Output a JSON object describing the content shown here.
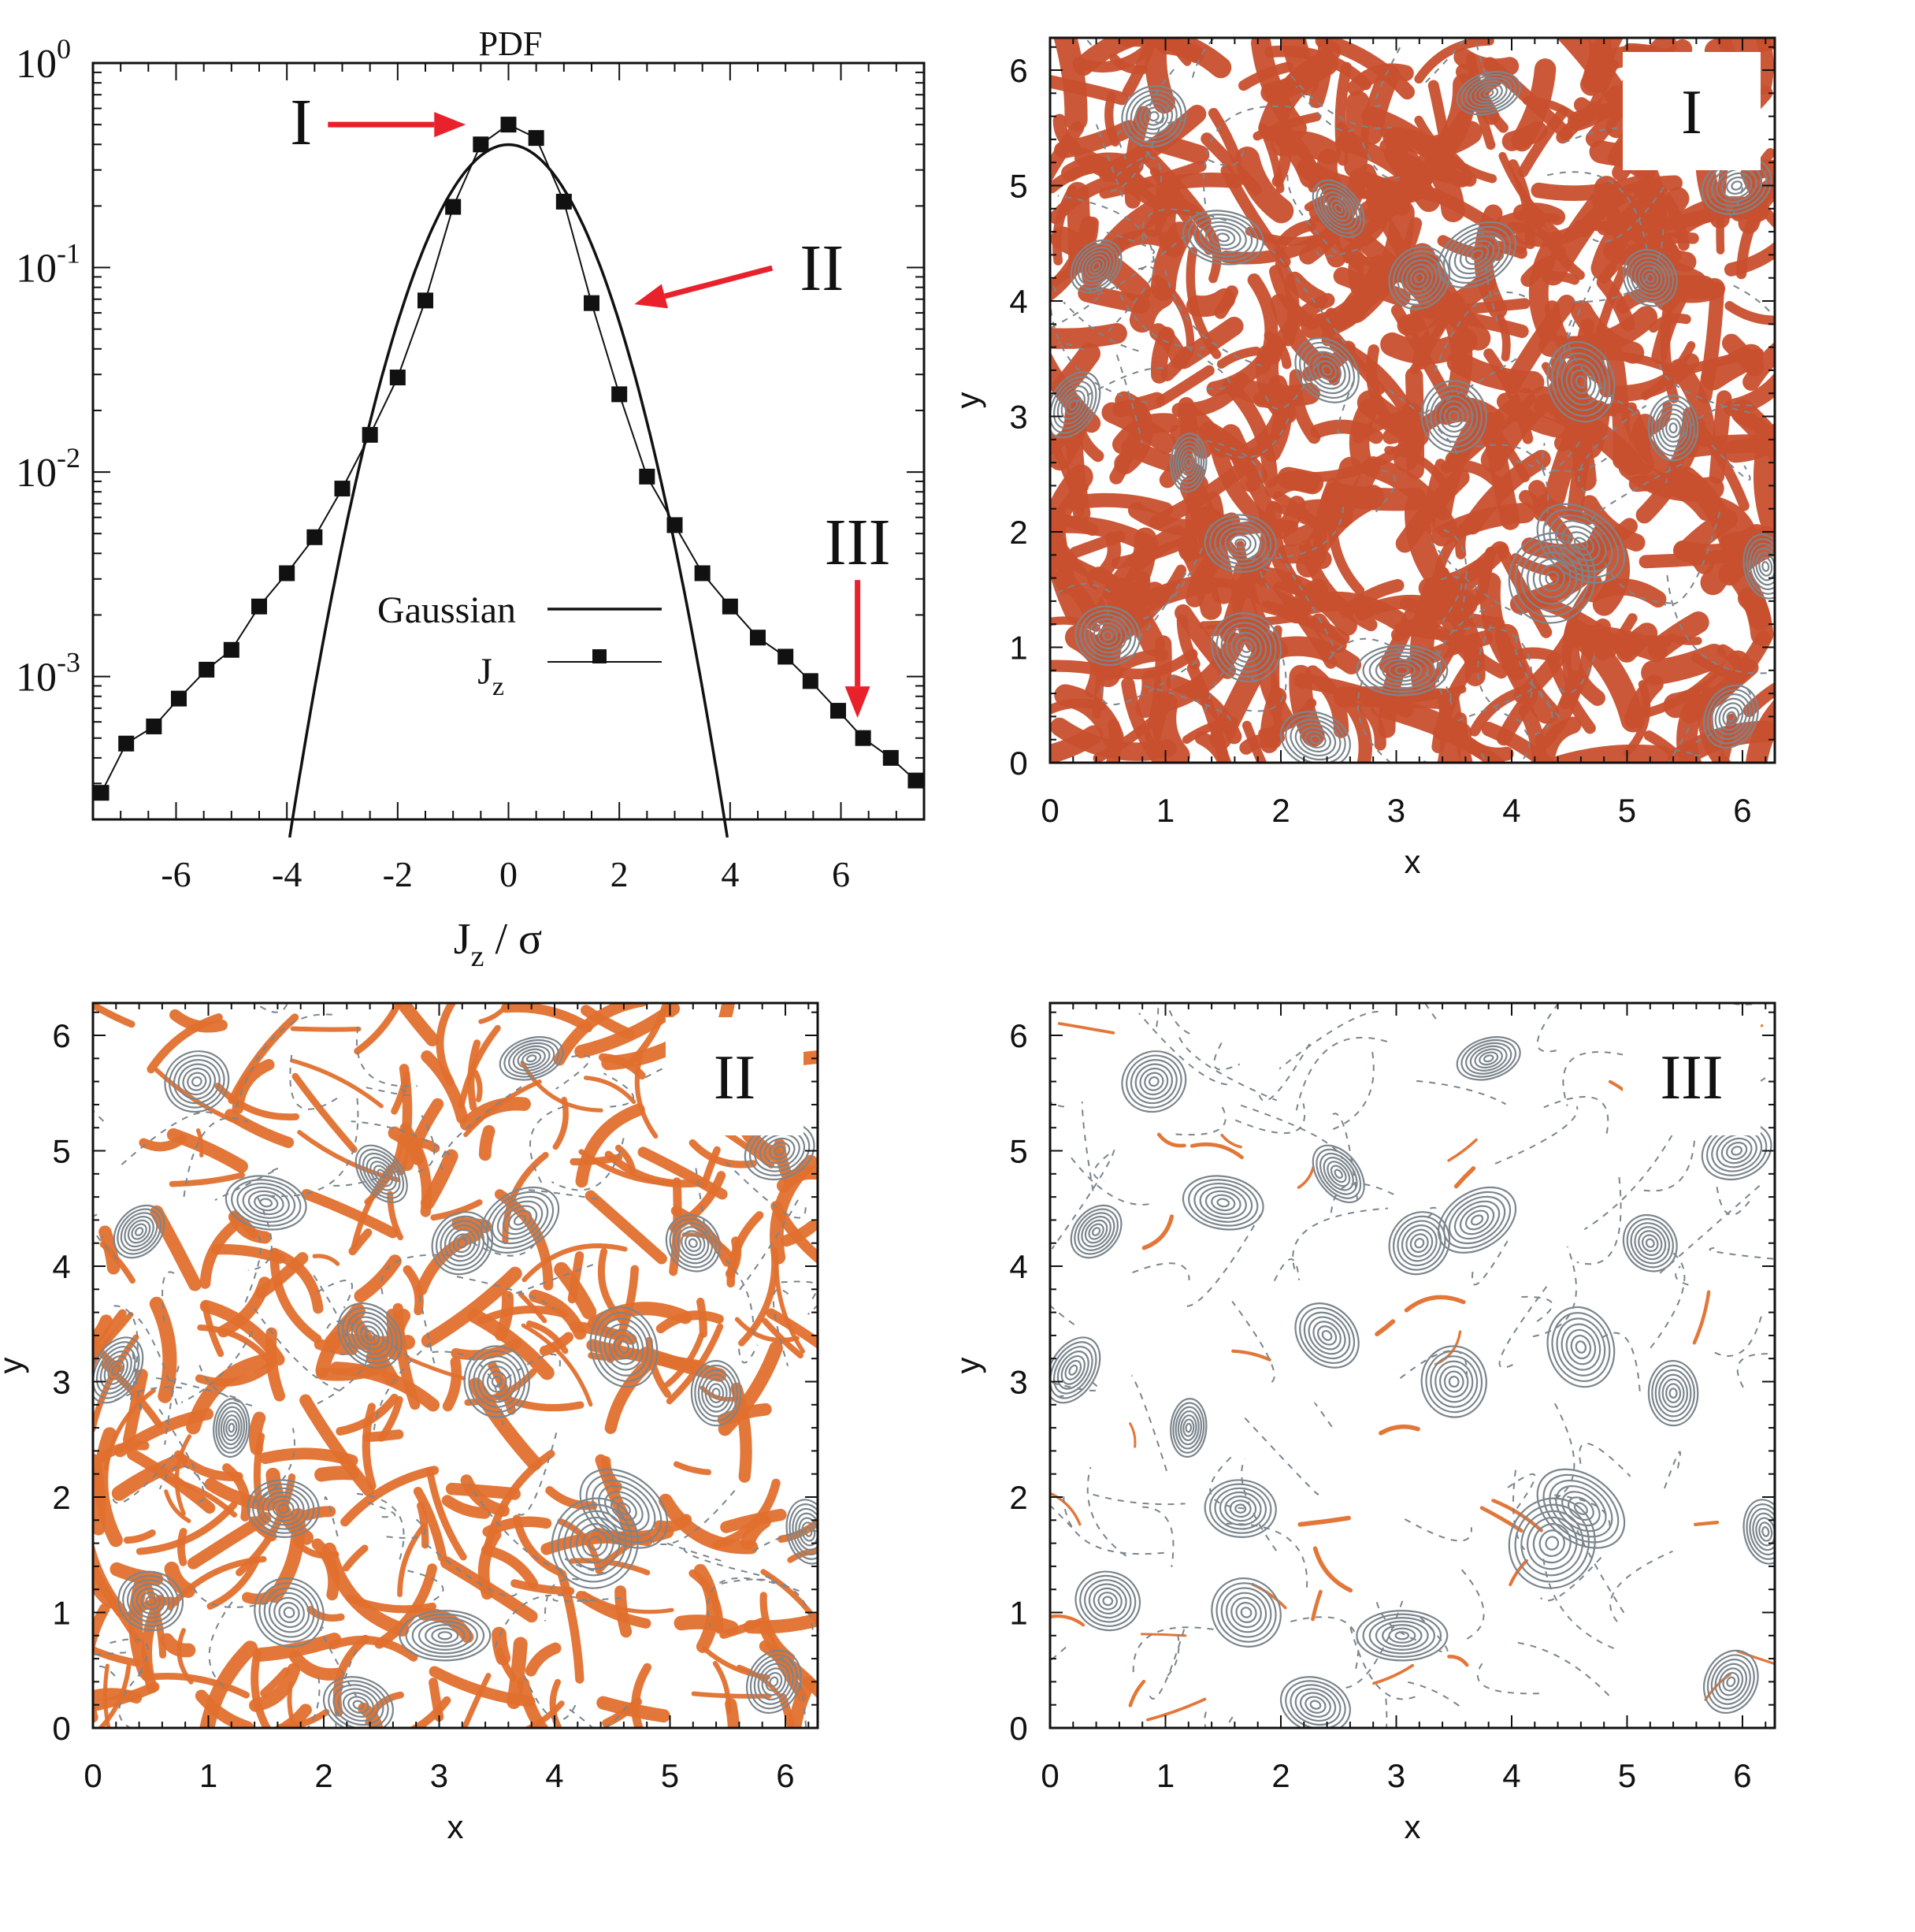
{
  "colors": {
    "curve": "#111111",
    "arrow": "#e8212b",
    "contour": "#7b858c",
    "fill_I": "#c8502e",
    "fill_II": "#e0702e",
    "fill_III": "#e0702e"
  },
  "chart_data": [
    {
      "type": "line",
      "title": "PDF",
      "xlabel_main": "J",
      "xlabel_sub": "z",
      "xlabel_rest": " / σ",
      "yscale": "log",
      "xlim": [
        -7.5,
        7.5
      ],
      "ylim": [
        0.0002,
        1
      ],
      "xticks": [
        "-6",
        "-4",
        "-2",
        "0",
        "2",
        "4",
        "6"
      ],
      "yticks": [
        {
          "base": "10",
          "exp": "0"
        },
        {
          "base": "10",
          "exp": "-1"
        },
        {
          "base": "10",
          "exp": "-2"
        },
        {
          "base": "10",
          "exp": "-3"
        }
      ],
      "legend": {
        "placement": "center",
        "gaussian_label": "Gaussian",
        "jz_label_main": "J",
        "jz_label_sub": "z"
      },
      "series": [
        {
          "name": "Gaussian",
          "kind": "analytic-gaussian",
          "sigma": 1,
          "x_range": [
            -3.95,
            3.95
          ]
        },
        {
          "name": "Jz",
          "marker": "square",
          "x": [
            -7.35,
            -6.9,
            -6.4,
            -5.95,
            -5.45,
            -5.0,
            -4.5,
            -4.0,
            -3.5,
            -3.0,
            -2.5,
            -2.0,
            -1.5,
            -1.0,
            -0.5,
            0.0,
            0.5,
            1.0,
            1.5,
            2.0,
            2.5,
            3.0,
            3.5,
            4.0,
            4.5,
            5.0,
            5.45,
            5.95,
            6.4,
            6.9,
            7.35
          ],
          "y": [
            0.00027,
            0.00047,
            0.00057,
            0.00078,
            0.00108,
            0.00135,
            0.0022,
            0.0032,
            0.0048,
            0.0083,
            0.0152,
            0.029,
            0.069,
            0.198,
            0.4,
            0.5,
            0.43,
            0.21,
            0.067,
            0.024,
            0.0095,
            0.0055,
            0.0032,
            0.0022,
            0.00155,
            0.00125,
            0.00095,
            0.00068,
            0.0005,
            0.0004,
            0.00031
          ]
        }
      ],
      "annotations": [
        {
          "label": "I",
          "target_x": -0.7,
          "target_y": 0.5
        },
        {
          "label": "II",
          "target_x": 2.2,
          "target_y": 0.065
        },
        {
          "label": "III",
          "target_x": 6.3,
          "target_y": 0.0006
        }
      ]
    },
    {
      "type": "contour",
      "panel_label": "I",
      "xlabel": "x",
      "ylabel": "y",
      "xlim": [
        0,
        6.28
      ],
      "ylim": [
        0,
        6.28
      ],
      "xticks": [
        "0",
        "1",
        "2",
        "3",
        "4",
        "5",
        "6"
      ],
      "yticks": [
        "0",
        "1",
        "2",
        "3",
        "4",
        "5",
        "6"
      ],
      "fill_level": "dense"
    },
    {
      "type": "contour",
      "panel_label": "II",
      "xlabel": "x",
      "ylabel": "y",
      "xlim": [
        0,
        6.28
      ],
      "ylim": [
        0,
        6.28
      ],
      "xticks": [
        "0",
        "1",
        "2",
        "3",
        "4",
        "5",
        "6"
      ],
      "yticks": [
        "0",
        "1",
        "2",
        "3",
        "4",
        "5",
        "6"
      ],
      "fill_level": "medium"
    },
    {
      "type": "contour",
      "panel_label": "III",
      "xlabel": "x",
      "ylabel": "y",
      "xlim": [
        0,
        6.28
      ],
      "ylim": [
        0,
        6.28
      ],
      "xticks": [
        "0",
        "1",
        "2",
        "3",
        "4",
        "5",
        "6"
      ],
      "yticks": [
        "0",
        "1",
        "2",
        "3",
        "4",
        "5",
        "6"
      ],
      "fill_level": "sparse"
    }
  ]
}
